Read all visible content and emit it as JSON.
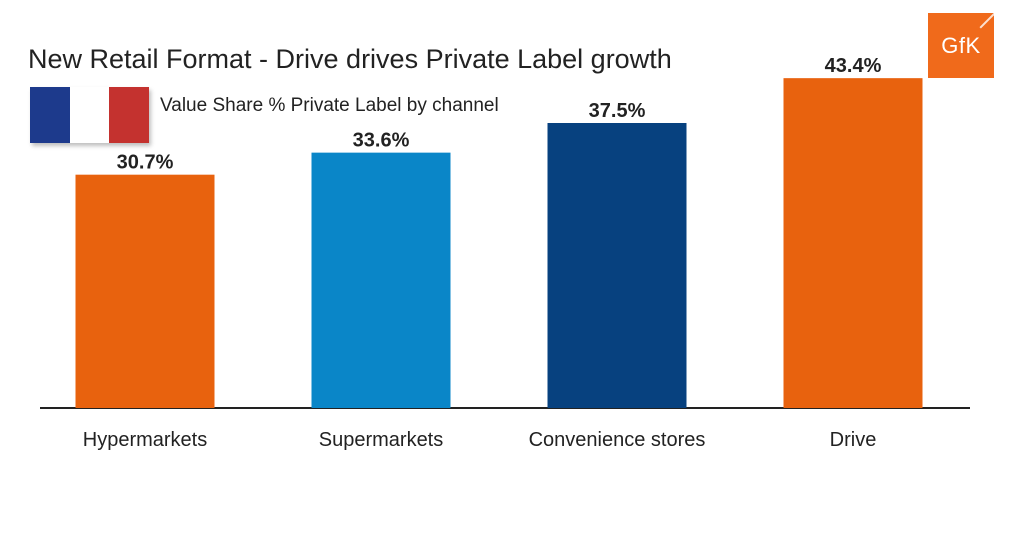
{
  "header": {
    "title": "New Retail Format - Drive drives Private Label growth",
    "subtitle": "Value Share % Private Label by channel",
    "logo_text": "GfK"
  },
  "flag": {
    "icon": "france-flag-icon",
    "colors": [
      "#1d3a8c",
      "#ffffff",
      "#c4322f"
    ]
  },
  "colors": {
    "logo_bg": "#f06a1b",
    "axis": "#222222",
    "text": "#222222"
  },
  "chart_data": {
    "type": "bar",
    "title": "",
    "xlabel": "",
    "ylabel": "",
    "categories": [
      "Hypermarkets",
      "Supermarkets",
      "Convenience stores",
      "Drive"
    ],
    "values": [
      30.7,
      33.6,
      37.5,
      43.4
    ],
    "labels": [
      "30.7%",
      "33.6%",
      "37.5%",
      "43.4%"
    ],
    "colors": [
      "#e8620e",
      "#0a86c8",
      "#07417f",
      "#e8620e"
    ],
    "ylim": [
      0,
      45
    ],
    "grid": false,
    "legend": "none"
  }
}
